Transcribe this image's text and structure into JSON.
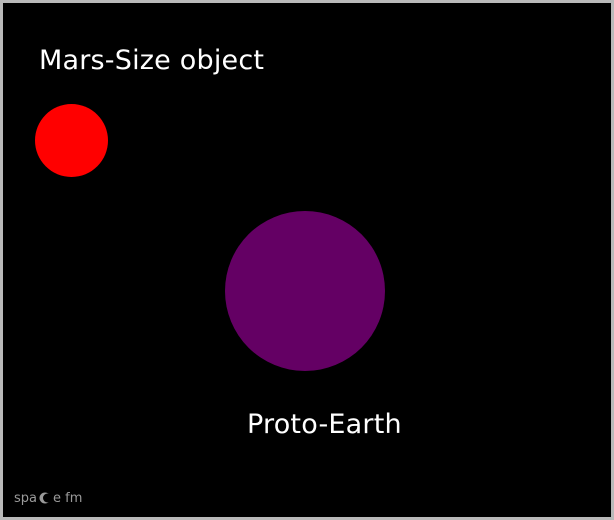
{
  "diagram": {
    "background_color": "#000000",
    "objects": [
      {
        "key": "mars",
        "label": "Mars-Size object",
        "color": "#ff0000"
      },
      {
        "key": "proto",
        "label": "Proto-Earth",
        "color": "#640064"
      }
    ]
  },
  "watermark": {
    "text": "space fm"
  }
}
